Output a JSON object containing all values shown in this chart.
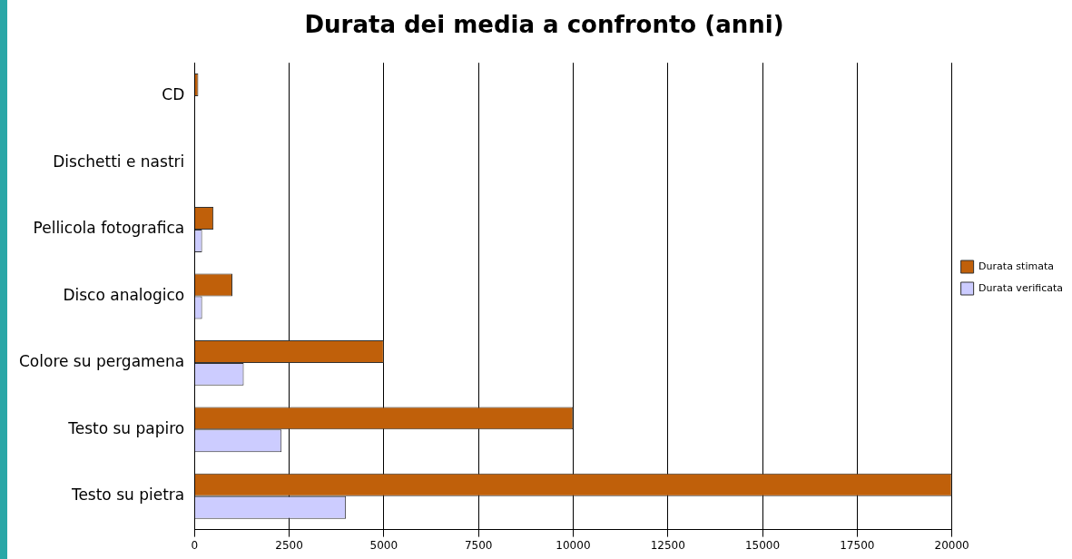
{
  "chart_data": {
    "type": "bar",
    "orientation": "horizontal",
    "title": "Durata dei media a confronto (anni)",
    "categories": [
      "CD",
      "Dischetti e nastri",
      "Pellicola fotografica",
      "Disco analogico",
      "Colore su pergamena",
      "Testo su papiro",
      "Testo su pietra"
    ],
    "series": [
      {
        "name": "Durata stimata",
        "color": "#c0600a",
        "values": [
          100,
          null,
          500,
          1000,
          5000,
          10000,
          20000
        ]
      },
      {
        "name": "Durata verificata",
        "color": "#ccccff",
        "values": [
          null,
          null,
          200,
          200,
          1300,
          2300,
          4000
        ]
      }
    ],
    "xlim": [
      0,
      20000
    ],
    "xticks": [
      0,
      2500,
      5000,
      7500,
      10000,
      12500,
      15000,
      17500,
      20000
    ],
    "grid": "x",
    "legend": "right"
  }
}
